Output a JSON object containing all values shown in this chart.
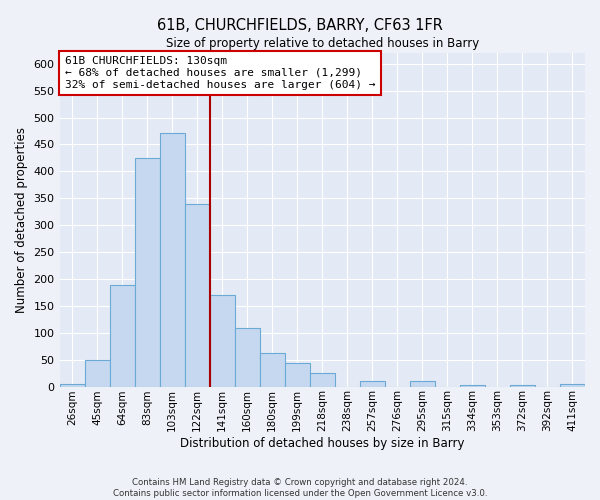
{
  "title": "61B, CHURCHFIELDS, BARRY, CF63 1FR",
  "subtitle": "Size of property relative to detached houses in Barry",
  "xlabel": "Distribution of detached houses by size in Barry",
  "ylabel": "Number of detached properties",
  "bin_labels": [
    "26sqm",
    "45sqm",
    "64sqm",
    "83sqm",
    "103sqm",
    "122sqm",
    "141sqm",
    "160sqm",
    "180sqm",
    "199sqm",
    "218sqm",
    "238sqm",
    "257sqm",
    "276sqm",
    "295sqm",
    "315sqm",
    "334sqm",
    "353sqm",
    "372sqm",
    "392sqm",
    "411sqm"
  ],
  "bar_values": [
    5,
    50,
    188,
    425,
    472,
    340,
    170,
    108,
    62,
    44,
    25,
    0,
    11,
    0,
    11,
    0,
    3,
    0,
    3,
    0,
    5
  ],
  "bar_color": "#c5d8f0",
  "bar_edge_color": "#6aaad4",
  "vline_x": 5.5,
  "vline_color": "#aa0000",
  "annotation_text": "61B CHURCHFIELDS: 130sqm\n← 68% of detached houses are smaller (1,299)\n32% of semi-detached houses are larger (604) →",
  "annotation_box_color": "#ffffff",
  "annotation_box_edge_color": "#cc0000",
  "ylim": [
    0,
    620
  ],
  "yticks": [
    0,
    50,
    100,
    150,
    200,
    250,
    300,
    350,
    400,
    450,
    500,
    550,
    600
  ],
  "footer_line1": "Contains HM Land Registry data © Crown copyright and database right 2024.",
  "footer_line2": "Contains public sector information licensed under the Open Government Licence v3.0.",
  "bg_color": "#eef2f8",
  "plot_bg_color": "#e4eaf5"
}
